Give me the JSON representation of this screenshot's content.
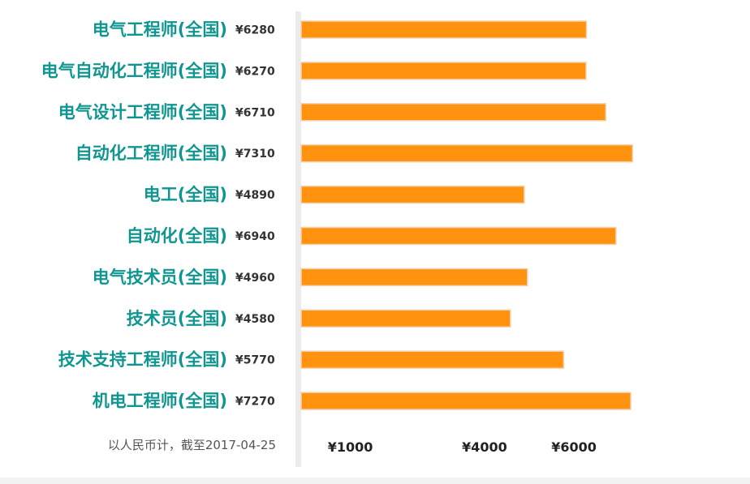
{
  "chart_data": {
    "type": "bar",
    "orientation": "horizontal",
    "categories": [
      "电气工程师(全国)",
      "电气自动化工程师(全国)",
      "电气设计工程师(全国)",
      "自动化工程师(全国)",
      "电工(全国)",
      "自动化(全国)",
      "电气技术员(全国)",
      "技术员(全国)",
      "技术支持工程师(全国)",
      "机电工程师(全国)"
    ],
    "values": [
      6280,
      6270,
      6710,
      7310,
      4890,
      6940,
      4960,
      4580,
      5770,
      7270
    ],
    "value_labels": [
      "¥6280",
      "¥6270",
      "¥6710",
      "¥7310",
      "¥4890",
      "¥6940",
      "¥4960",
      "¥4580",
      "¥5770",
      "¥7270"
    ],
    "ticks": [
      1000,
      4000,
      6000
    ],
    "tick_labels": [
      "¥1000",
      "¥4000",
      "¥6000"
    ],
    "xlim": [
      -100,
      8000
    ],
    "grid": false,
    "legend": "none",
    "note": "以人民币计，截至2017-04-25",
    "colors": {
      "bar": "#FF9310",
      "bar_border": "#F3D2B0",
      "category_text": "#109690",
      "axis_line": "#ECECEC"
    }
  }
}
